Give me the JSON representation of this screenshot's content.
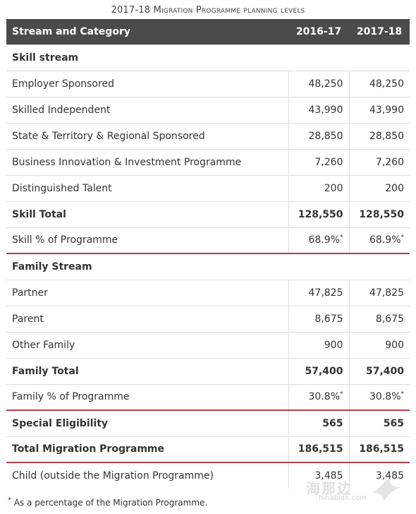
{
  "caption": {
    "year": "2017-18",
    "title": "Migration Programme planning levels"
  },
  "header": {
    "col_stream": "Stream and Category",
    "col_y1": "2016-17",
    "col_y2": "2017-18"
  },
  "rows": [
    {
      "label": "Skill stream",
      "kind": "section"
    },
    {
      "label": "Employer Sponsored",
      "v1": "48,250",
      "v2": "48,250"
    },
    {
      "label": "Skilled Independent",
      "v1": "43,990",
      "v2": "43,990"
    },
    {
      "label": "State & Territory & Regional Sponsored",
      "v1": "28,850",
      "v2": "28,850"
    },
    {
      "label": "Business Innovation & Investment Programme",
      "v1": "7,260",
      "v2": "7,260"
    },
    {
      "label": "Distinguished Talent",
      "v1": "200",
      "v2": "200"
    },
    {
      "label": "Skill Total",
      "v1": "128,550",
      "v2": "128,550",
      "kind": "total"
    },
    {
      "label": "Skill % of Programme",
      "v1": "68.9%",
      "v2": "68.9%",
      "mark": "*"
    },
    {
      "label": "Family Stream",
      "kind": "section"
    },
    {
      "label": "Partner",
      "v1": "47,825",
      "v2": "47,825"
    },
    {
      "label": "Parent",
      "v1": "8,675",
      "v2": "8,675"
    },
    {
      "label": "Other Family",
      "v1": "900",
      "v2": "900"
    },
    {
      "label": "Family Total",
      "v1": "57,400",
      "v2": "57,400",
      "kind": "total"
    },
    {
      "label": "Family % of Programme",
      "v1": "30.8%",
      "v2": "30.8%",
      "mark": "*"
    },
    {
      "label": "Special Eligibility",
      "v1": "565",
      "v2": "565",
      "kind": "total"
    },
    {
      "label": "Total Migration Programme",
      "v1": "186,515",
      "v2": "186,515",
      "kind": "total"
    },
    {
      "label": "Child (outside the Migration Programme)",
      "v1": "3,485",
      "v2": "3,485"
    }
  ],
  "footnote": {
    "mark": "*",
    "text": "As a percentage of the Migration Programme."
  },
  "watermark": {
    "text": "海那边",
    "sub": "hinabian.com"
  }
}
